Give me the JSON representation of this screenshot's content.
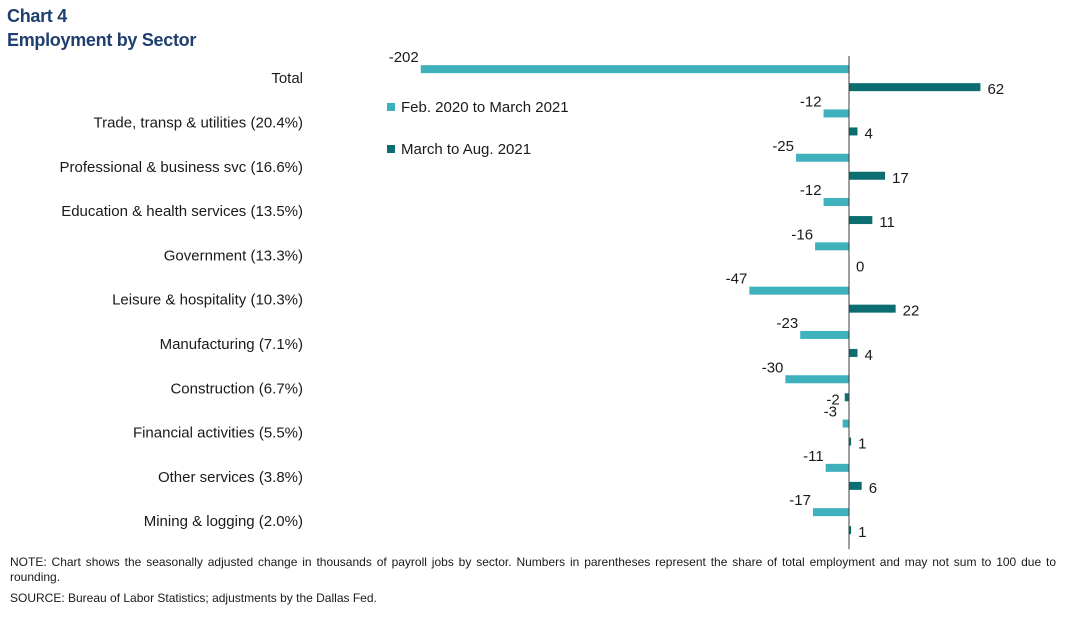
{
  "header": {
    "chart_number": "Chart 4",
    "title": "Employment by Sector"
  },
  "colors": {
    "series1": "#3fb1bd",
    "series2": "#0d6e72",
    "axis": "#3c3c3c"
  },
  "chart_data": {
    "type": "bar",
    "orientation": "horizontal",
    "title": "Employment by Sector",
    "categories": [
      "Total",
      "Trade, transp & utilities (20.4%)",
      "Professional & business svc (16.6%)",
      "Education & health services (13.5%)",
      "Government (13.3%)",
      "Leisure & hospitality (10.3%)",
      "Manufacturing (7.1%)",
      "Construction (6.7%)",
      "Financial activities (5.5%)",
      "Other services (3.8%)",
      "Mining & logging (2.0%)"
    ],
    "series": [
      {
        "name": "Feb. 2020 to March 2021",
        "values": [
          -202,
          -12,
          -25,
          -12,
          -16,
          -47,
          -23,
          -30,
          -3,
          -11,
          -17
        ]
      },
      {
        "name": "March to Aug. 2021",
        "values": [
          62,
          4,
          17,
          11,
          0,
          22,
          4,
          -2,
          1,
          6,
          1
        ]
      }
    ],
    "data_labels": [
      [
        "-202",
        "-12",
        "-25",
        "-12",
        "-16",
        "-47",
        "-23",
        "-30",
        "-3",
        "-11",
        "-17"
      ],
      [
        "62",
        "4",
        "17",
        "11",
        "0",
        "22",
        "4",
        "-2",
        "1",
        "6",
        "1"
      ]
    ],
    "xlim": [
      -202,
      62
    ],
    "legend_position": "upper-left inside plot",
    "grid": false
  },
  "footer": {
    "note": "NOTE: Chart shows the seasonally adjusted change in thousands of payroll jobs by sector. Numbers in parentheses represent the share of total employment and may not sum to 100 due to rounding.",
    "source": "SOURCE: Bureau of Labor Statistics; adjustments by the Dallas Fed."
  }
}
